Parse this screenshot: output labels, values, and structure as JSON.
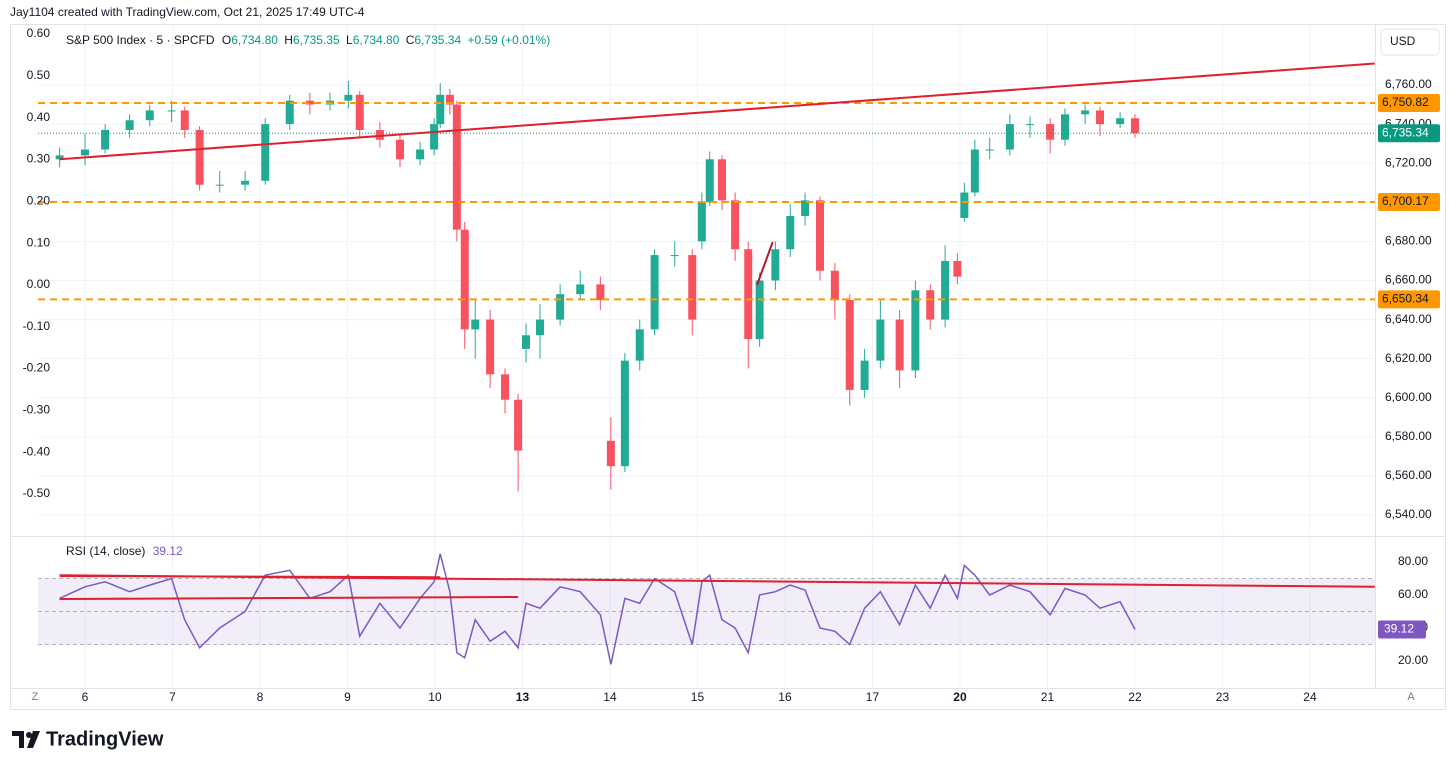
{
  "header": {
    "credit": "Jay1104 created with TradingView.com, Oct 21, 2025 17:49 UTC-4"
  },
  "footer": {
    "brand": "TradingView"
  },
  "currency": "USD",
  "corner_left": "Z",
  "corner_right": "A",
  "chart_data": [
    {
      "type": "candlestick",
      "legend": {
        "symbol": "S&P 500 Index · 5 · SPCFD",
        "o_key": "O",
        "o": "6,734.80",
        "h_key": "H",
        "h": "6,735.35",
        "l_key": "L",
        "l": "6,734.80",
        "c_key": "C",
        "c": "6,735.34",
        "change": "+0.59 (+0.01%)"
      },
      "up_color": "#22ab94",
      "down_color": "#f7525f",
      "x": [
        -0.29,
        0,
        0.23,
        0.51,
        0.74,
        0.99,
        1.14,
        1.31,
        1.54,
        1.83,
        2.06,
        2.34,
        2.57,
        2.8,
        3.01,
        3.14,
        3.37,
        3.6,
        3.83,
        3.99,
        4.06,
        4.17,
        4.25,
        4.34,
        4.46,
        4.63,
        4.8,
        4.95,
        5.04,
        5.2,
        5.43,
        5.66,
        5.89,
        6.01,
        6.17,
        6.34,
        6.51,
        6.74,
        6.94,
        7.05,
        7.14,
        7.28,
        7.43,
        7.58,
        7.71,
        7.89,
        8.06,
        8.23,
        8.4,
        8.57,
        8.74,
        8.91,
        9.09,
        9.31,
        9.49,
        9.66,
        9.83,
        9.97,
        10.05,
        10.17,
        10.34,
        10.57,
        10.8,
        11.03,
        11.2,
        11.43,
        11.6,
        11.83,
        12
      ],
      "open": [
        6722,
        6724,
        6727,
        6737,
        6742,
        6747,
        6747,
        6737,
        6709,
        6709,
        6711,
        6740,
        6752,
        6750,
        6752,
        6755,
        6737,
        6732,
        6722,
        6727,
        6740,
        6755,
        6750,
        6686,
        6635,
        6640,
        6612,
        6599,
        6625,
        6632,
        6640,
        6653,
        6658,
        6578,
        6565,
        6619,
        6635,
        6673,
        6673,
        6680,
        6700,
        6722,
        6701,
        6676,
        6630,
        6660,
        6676,
        6693,
        6701,
        6665,
        6650,
        6604,
        6619,
        6640,
        6614,
        6655,
        6640,
        6670,
        6692,
        6705,
        6727,
        6727,
        6740,
        6740,
        6732,
        6745,
        6747,
        6740,
        6743
      ],
      "high": [
        6728,
        6735,
        6740,
        6745,
        6750,
        6752,
        6749,
        6739,
        6716,
        6716,
        6743,
        6755,
        6756,
        6756,
        6762,
        6757,
        6741,
        6735,
        6731,
        6743,
        6761,
        6758,
        6752,
        6690,
        6650,
        6645,
        6615,
        6602,
        6638,
        6648,
        6658,
        6665,
        6662,
        6590,
        6623,
        6640,
        6676,
        6680,
        6676,
        6705,
        6726,
        6724,
        6705,
        6680,
        6664,
        6680,
        6699,
        6705,
        6703,
        6669,
        6653,
        6625,
        6650,
        6645,
        6660,
        6658,
        6678,
        6674,
        6710,
        6732,
        6733,
        6745,
        6744,
        6743,
        6748,
        6750,
        6749,
        6746,
        6745
      ],
      "low": [
        6718,
        6719,
        6725,
        6733,
        6739,
        6741,
        6733,
        6706,
        6705,
        6706,
        6709,
        6737,
        6745,
        6747,
        6748,
        6733,
        6728,
        6718,
        6719,
        6724,
        6738,
        6745,
        6680,
        6625,
        6620,
        6605,
        6592,
        6552,
        6618,
        6620,
        6637,
        6650,
        6645,
        6553,
        6562,
        6614,
        6632,
        6667,
        6632,
        6676,
        6698,
        6696,
        6670,
        6615,
        6626,
        6655,
        6672,
        6688,
        6660,
        6640,
        6596,
        6600,
        6615,
        6605,
        6610,
        6635,
        6636,
        6658,
        6690,
        6703,
        6722,
        6724,
        6733,
        6725,
        6729,
        6740,
        6734,
        6738,
        6733
      ],
      "close": [
        6724,
        6727,
        6737,
        6742,
        6747,
        6747,
        6737,
        6709,
        6709,
        6711,
        6740,
        6752,
        6750,
        6752,
        6755,
        6737,
        6732,
        6722,
        6727,
        6740,
        6755,
        6750,
        6686,
        6635,
        6640,
        6612,
        6599,
        6573,
        6632,
        6640,
        6653,
        6658,
        6650,
        6565,
        6619,
        6635,
        6673,
        6673,
        6640,
        6700,
        6722,
        6701,
        6676,
        6630,
        6660,
        6676,
        6693,
        6701,
        6665,
        6650,
        6604,
        6619,
        6640,
        6614,
        6655,
        6640,
        6670,
        6662,
        6705,
        6727,
        6727,
        6740,
        6740,
        6732,
        6745,
        6747,
        6740,
        6743,
        6735.34
      ],
      "xlim": [
        -0.537,
        14.743
      ],
      "xticks": [
        {
          "value": 0,
          "label": "6"
        },
        {
          "value": 1,
          "label": "7"
        },
        {
          "value": 2,
          "label": "8"
        },
        {
          "value": 3,
          "label": "9"
        },
        {
          "value": 4,
          "label": "10"
        },
        {
          "value": 5,
          "label": "13",
          "bold": true
        },
        {
          "value": 6,
          "label": "14"
        },
        {
          "value": 7,
          "label": "15"
        },
        {
          "value": 8,
          "label": "16"
        },
        {
          "value": 9,
          "label": "17"
        },
        {
          "value": 10,
          "label": "20",
          "bold": true
        },
        {
          "value": 11,
          "label": "21"
        },
        {
          "value": 12,
          "label": "22"
        },
        {
          "value": 13,
          "label": "23"
        },
        {
          "value": 14,
          "label": "24"
        }
      ],
      "ylim": [
        6529.8,
        6790.7
      ],
      "yticks": [
        {
          "value": 6540,
          "label": "6,540.00"
        },
        {
          "value": 6560,
          "label": "6,560.00"
        },
        {
          "value": 6580,
          "label": "6,580.00"
        },
        {
          "value": 6600,
          "label": "6,600.00"
        },
        {
          "value": 6620,
          "label": "6,620.00"
        },
        {
          "value": 6640,
          "label": "6,640.00"
        },
        {
          "value": 6660,
          "label": "6,660.00"
        },
        {
          "value": 6680,
          "label": "6,680.00"
        },
        {
          "value": 6700,
          "label": "6,700.00"
        },
        {
          "value": 6720,
          "label": "6,720.00"
        },
        {
          "value": 6740,
          "label": "6,740.00"
        },
        {
          "value": 6760,
          "label": "6,760.00"
        }
      ],
      "y2lim": [
        -0.598,
        0.6215
      ],
      "y2ticks": [
        {
          "value": 0.6,
          "label": "0.60"
        },
        {
          "value": 0.5,
          "label": "0.50"
        },
        {
          "value": 0.4,
          "label": "0.40"
        },
        {
          "value": 0.3,
          "label": "0.30"
        },
        {
          "value": 0.2,
          "label": "0.20"
        },
        {
          "value": 0.1,
          "label": "0.10"
        },
        {
          "value": 0,
          "label": "0.00"
        },
        {
          "value": -0.1,
          "label": "-0.10"
        },
        {
          "value": -0.2,
          "label": "-0.20"
        },
        {
          "value": -0.3,
          "label": "-0.30"
        },
        {
          "value": -0.4,
          "label": "-0.40"
        },
        {
          "value": -0.5,
          "label": "-0.50"
        }
      ],
      "levels": [
        {
          "value": 6750.82,
          "label": "6,750.82"
        },
        {
          "value": 6700.17,
          "label": "6,700.17"
        },
        {
          "value": 6650.34,
          "label": "6,650.34"
        }
      ],
      "level_color": "#ff9800",
      "last_price": {
        "value": 6735.34,
        "label": "6,735.34"
      },
      "last_color": "#089981",
      "trendlines": [
        {
          "x": [
            -0.29,
            14.74
          ],
          "y": [
            6722,
            6771
          ],
          "color": "#e0202e"
        },
        {
          "x": [
            7.68,
            7.86
          ],
          "y": [
            6657.7,
            6679.7
          ],
          "color": "#b2182b"
        }
      ],
      "grid": true
    },
    {
      "type": "line",
      "legend": {
        "name": "RSI (14, close)",
        "value": "39.12"
      },
      "color": "#7e57c2",
      "values": [
        58,
        65,
        68,
        62,
        66,
        70,
        45,
        28,
        40,
        50,
        72,
        75,
        58,
        62,
        72,
        35,
        55,
        40,
        58,
        68,
        85,
        62,
        25,
        22,
        45,
        32,
        38,
        28,
        55,
        52,
        65,
        62,
        48,
        18,
        58,
        55,
        70,
        62,
        30,
        68,
        72,
        45,
        40,
        25,
        60,
        62,
        66,
        63,
        40,
        38,
        30,
        52,
        62,
        42,
        66,
        52,
        72,
        58,
        78,
        72,
        60,
        66,
        62,
        48,
        64,
        60,
        52,
        56,
        39.12
      ],
      "xlim": [
        -0.537,
        14.743
      ],
      "ylim": [
        3.6,
        95.2
      ],
      "yticks": [
        {
          "value": 20,
          "label": "20.00"
        },
        {
          "value": 40,
          "label": "40.00"
        },
        {
          "value": 60,
          "label": "60.00"
        },
        {
          "value": 80,
          "label": "80.00"
        }
      ],
      "levels": [
        70,
        50,
        30
      ],
      "trendlines": [
        {
          "x": [
            -0.29,
            14.74
          ],
          "y": [
            72,
            65
          ],
          "color": "#e0202e"
        },
        {
          "x": [
            -0.29,
            4.06
          ],
          "y": [
            71.5,
            70.8
          ],
          "color": "#e0202e"
        },
        {
          "x": [
            -0.29,
            4.95
          ],
          "y": [
            57.6,
            58.8
          ],
          "color": "#e0202e"
        }
      ]
    }
  ]
}
